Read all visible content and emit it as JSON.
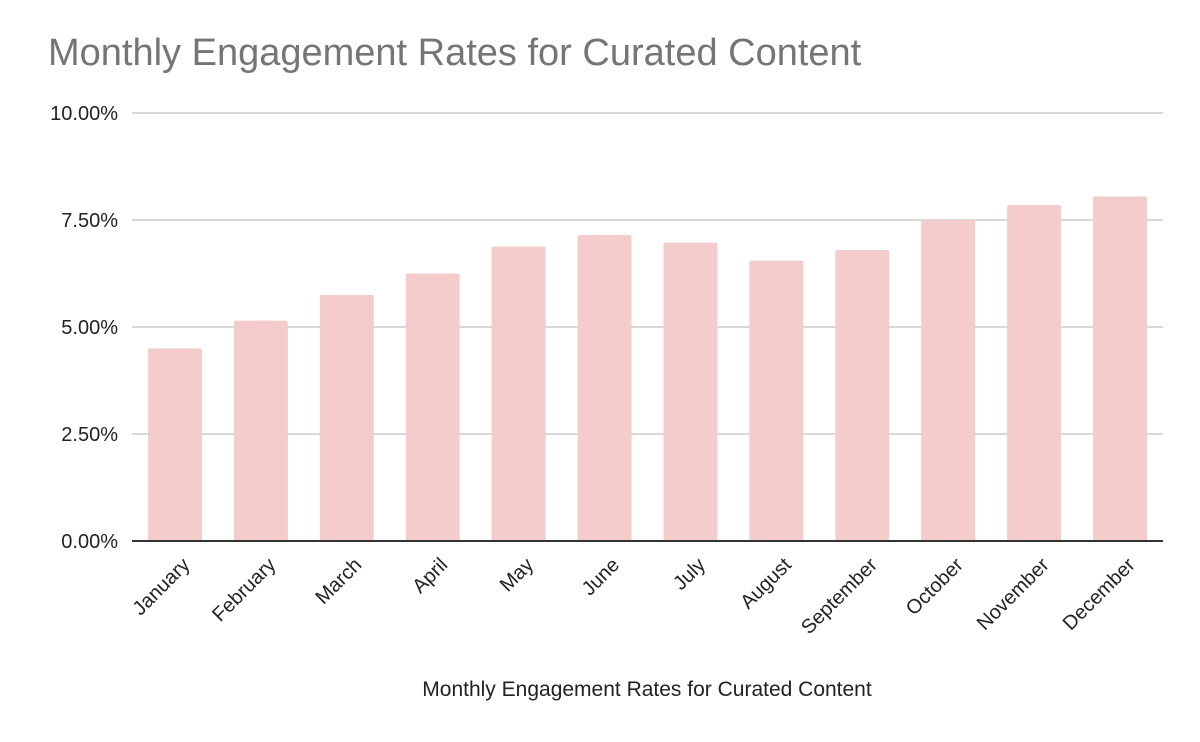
{
  "chart_data": {
    "type": "bar",
    "title": "Monthly Engagement Rates for Curated Content",
    "xlabel": "Monthly Engagement Rates for Curated Content",
    "ylabel": "",
    "categories": [
      "January",
      "February",
      "March",
      "April",
      "May",
      "June",
      "July",
      "August",
      "September",
      "October",
      "November",
      "December"
    ],
    "values": [
      4.5,
      5.15,
      5.75,
      6.25,
      6.88,
      7.15,
      6.97,
      6.55,
      6.8,
      7.5,
      7.85,
      8.05
    ],
    "y_ticks": [
      "0.00%",
      "2.50%",
      "5.00%",
      "7.50%",
      "10.00%"
    ],
    "ylim": [
      0,
      10
    ],
    "y_unit": "percent",
    "grid": true,
    "legend": "none",
    "bar_color": "#f4cccc",
    "gridline_color": "#cccccc",
    "axis_color": "#333333",
    "title_color": "#757575"
  }
}
